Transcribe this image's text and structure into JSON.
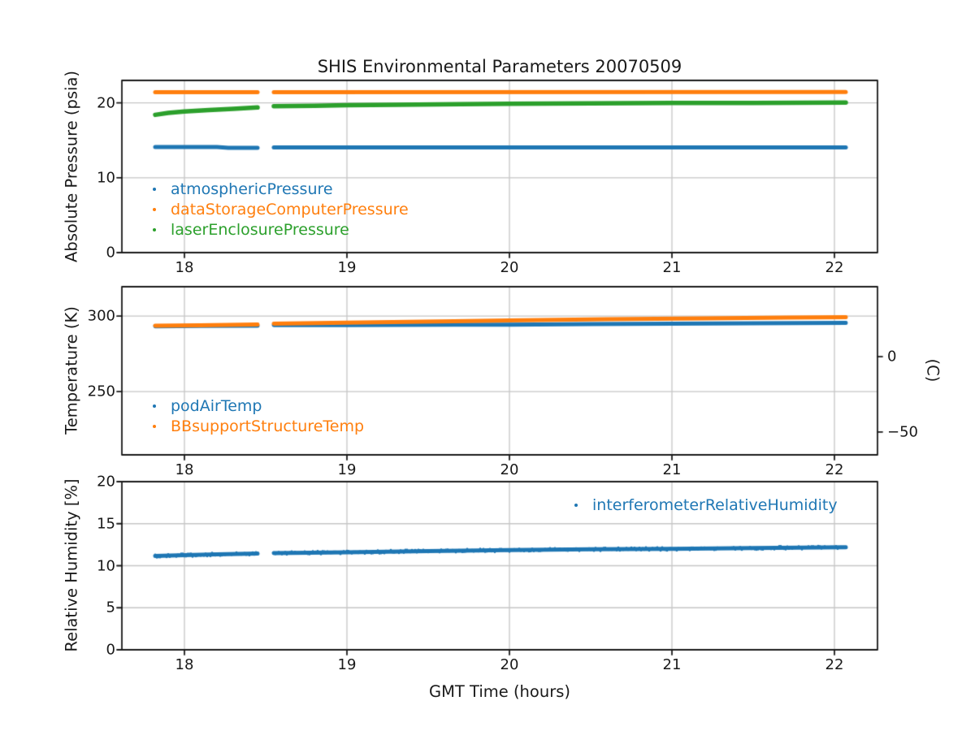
{
  "figure": {
    "title": "SHIS Environmental Parameters 20070509",
    "xlabel": "GMT Time (hours)",
    "background": "#ffffff",
    "grid_color": "#c6c6c6",
    "axis_color": "#1a1a1a"
  },
  "chart_data": [
    {
      "type": "scatter",
      "ylabel": "Absolute Pressure (psia)",
      "xlim": [
        17.615,
        22.265
      ],
      "ylim": [
        0,
        23.0
      ],
      "xticks": [
        18,
        19,
        20,
        21,
        22
      ],
      "yticks": [
        0,
        10,
        20
      ],
      "grid": true,
      "legend_position": "lower-left",
      "gap": [
        18.45,
        18.55
      ],
      "series": [
        {
          "name": "atmosphericPressure",
          "color": "#1f77b4",
          "linewidth": 5,
          "segments": [
            [
              [
                17.82,
                14.1
              ],
              [
                18.2,
                14.1
              ],
              [
                18.27,
                14.0
              ],
              [
                18.45,
                14.0
              ]
            ],
            [
              [
                18.55,
                14.05
              ],
              [
                22.07,
                14.05
              ]
            ]
          ]
        },
        {
          "name": "dataStorageComputerPressure",
          "color": "#ff7f0e",
          "linewidth": 5,
          "segments": [
            [
              [
                17.82,
                21.43
              ],
              [
                18.45,
                21.43
              ]
            ],
            [
              [
                18.55,
                21.43
              ],
              [
                22.07,
                21.45
              ]
            ]
          ]
        },
        {
          "name": "laserEnclosurePressure",
          "color": "#2ca02c",
          "linewidth": 5.5,
          "segments": [
            [
              [
                17.82,
                18.4
              ],
              [
                17.9,
                18.65
              ],
              [
                18.0,
                18.85
              ],
              [
                18.15,
                19.05
              ],
              [
                18.3,
                19.2
              ],
              [
                18.45,
                19.38
              ]
            ],
            [
              [
                18.55,
                19.55
              ],
              [
                18.8,
                19.62
              ],
              [
                19.0,
                19.68
              ],
              [
                19.3,
                19.75
              ],
              [
                19.7,
                19.83
              ],
              [
                20.0,
                19.88
              ],
              [
                20.5,
                19.94
              ],
              [
                21.0,
                19.98
              ],
              [
                21.5,
                20.0
              ],
              [
                22.07,
                20.05
              ]
            ]
          ]
        }
      ]
    },
    {
      "type": "scatter",
      "ylabel": "Temperature (K)",
      "ylabel_right": "(C)",
      "xlim": [
        17.615,
        22.265
      ],
      "ylim": [
        208,
        319.5
      ],
      "xticks": [
        18,
        19,
        20,
        21,
        22
      ],
      "yticks": [
        250,
        300
      ],
      "yticks_right": [
        {
          "label": "0",
          "kelvin": 273.15
        },
        {
          "label": "−50",
          "kelvin": 223.15
        }
      ],
      "grid": true,
      "legend_position": "lower-left",
      "gap": [
        18.45,
        18.55
      ],
      "series": [
        {
          "name": "podAirTemp",
          "color": "#1f77b4",
          "linewidth": 5,
          "segments": [
            [
              [
                17.82,
                293.3
              ],
              [
                18.1,
                293.5
              ],
              [
                18.45,
                293.7
              ]
            ],
            [
              [
                18.55,
                294.0
              ],
              [
                19.0,
                294.1
              ],
              [
                19.66,
                294.3
              ],
              [
                20.0,
                294.3
              ],
              [
                20.5,
                294.7
              ],
              [
                21.0,
                295.0
              ],
              [
                21.5,
                295.3
              ],
              [
                22.07,
                295.5
              ]
            ]
          ]
        },
        {
          "name": "BBsupportStructureTemp",
          "color": "#ff7f0e",
          "linewidth": 5,
          "segments": [
            [
              [
                17.82,
                293.6
              ],
              [
                18.1,
                293.9
              ],
              [
                18.45,
                294.4
              ]
            ],
            [
              [
                18.55,
                295.0
              ],
              [
                19.0,
                295.6
              ],
              [
                19.66,
                296.6
              ],
              [
                20.0,
                297.2
              ],
              [
                20.6,
                297.9
              ],
              [
                21.2,
                298.5
              ],
              [
                21.7,
                299.0
              ],
              [
                22.07,
                299.3
              ]
            ]
          ]
        }
      ]
    },
    {
      "type": "scatter",
      "ylabel": "Relative Humidity [%]",
      "xlim": [
        17.615,
        22.265
      ],
      "ylim": [
        0,
        20
      ],
      "xticks": [
        18,
        19,
        20,
        21,
        22
      ],
      "yticks": [
        0,
        5,
        10,
        15,
        20
      ],
      "grid": true,
      "legend_position": "upper-right",
      "gap": [
        18.45,
        18.55
      ],
      "series": [
        {
          "name": "interferometerRelativeHumidity",
          "color": "#1f77b4",
          "linewidth": 5,
          "fuzzy": true,
          "segments": [
            [
              [
                17.82,
                11.15
              ],
              [
                18.0,
                11.25
              ],
              [
                18.2,
                11.35
              ],
              [
                18.45,
                11.45
              ]
            ],
            [
              [
                18.55,
                11.5
              ],
              [
                19.0,
                11.6
              ],
              [
                19.5,
                11.75
              ],
              [
                20.0,
                11.85
              ],
              [
                20.5,
                11.95
              ],
              [
                21.0,
                12.0
              ],
              [
                21.5,
                12.1
              ],
              [
                22.07,
                12.2
              ]
            ]
          ]
        }
      ]
    }
  ]
}
